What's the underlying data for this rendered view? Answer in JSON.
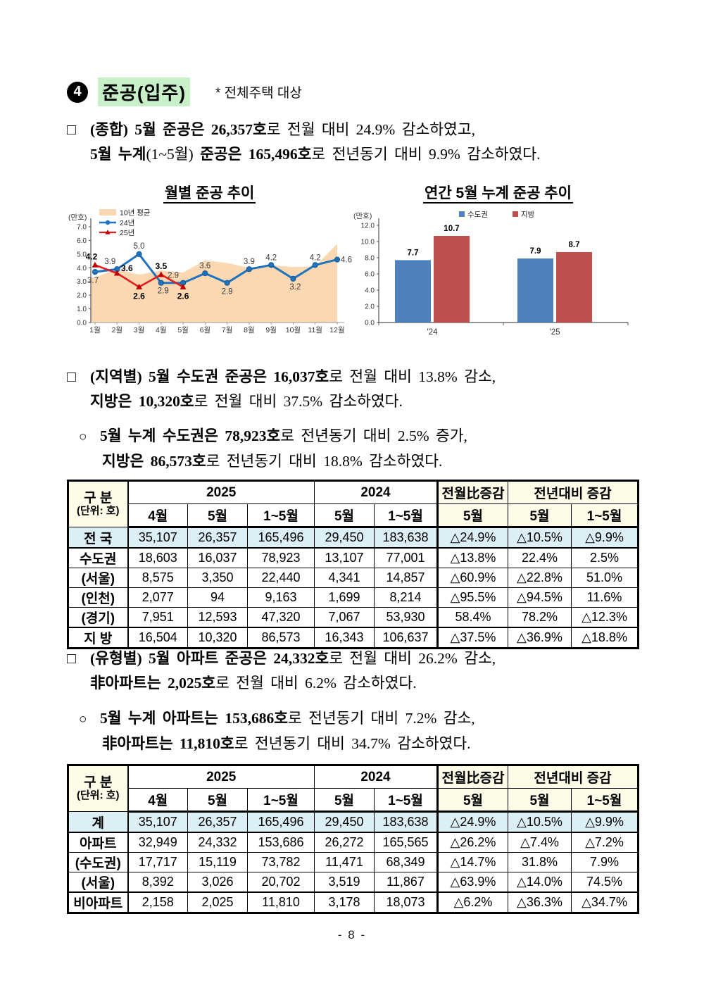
{
  "header": {
    "section_number": "4",
    "title": "준공(입주)",
    "note": "* 전체주택 대상"
  },
  "colors": {
    "highlight_green": "#C8F0C8",
    "table_row_blue": "#DCEFF7",
    "table_header_yellow": "#FDFCE8",
    "line_24_blue": "#1E73BE",
    "line_25_red": "#E02020",
    "area_peach": "#FBD8B2",
    "bar_blue": "#4F81BD",
    "bar_red": "#C0504D"
  },
  "paragraphs": [
    {
      "marker": "□",
      "style": "main",
      "lines": [
        [
          {
            "t": "(종합) 5월 준공은 ",
            "b": 1
          },
          {
            "t": "26,357호",
            "b": 1
          },
          {
            "t": "로 전월 대비 24.9% 감소하였고,",
            "b": 0
          }
        ],
        [
          {
            "t": "5월 누계",
            "b": 1
          },
          {
            "t": "(1~5월)",
            "b": 0
          },
          {
            "t": " 준공은 ",
            "b": 1
          },
          {
            "t": "165,496호",
            "b": 1
          },
          {
            "t": "로 전년동기 대비 9.9% 감소하였다.",
            "b": 0
          }
        ]
      ]
    },
    {
      "marker": "□",
      "style": "main",
      "lines": [
        [
          {
            "t": "(지역별) 5월 수도권 준공은 ",
            "b": 1
          },
          {
            "t": "16,037호",
            "b": 1
          },
          {
            "t": "로 전월 대비 13.8% 감소,",
            "b": 0
          }
        ],
        [
          {
            "t": "지방은 10,320호",
            "b": 1
          },
          {
            "t": "로 전월 대비 37.5% 감소하였다.",
            "b": 0
          }
        ]
      ]
    },
    {
      "marker": "○",
      "style": "sub",
      "lines": [
        [
          {
            "t": "5월 누계 수도권은 ",
            "b": 1
          },
          {
            "t": "78,923호",
            "b": 1
          },
          {
            "t": "로 전년동기 대비 2.5% 증가,",
            "b": 0
          }
        ],
        [
          {
            "t": "지방은 86,573호",
            "b": 1
          },
          {
            "t": "로 전년동기 대비 18.8% 감소하였다.",
            "b": 0
          }
        ]
      ]
    },
    {
      "marker": "□",
      "style": "main",
      "lines": [
        [
          {
            "t": "(유형별) 5월 아파트 준공은 ",
            "b": 1
          },
          {
            "t": "24,332호",
            "b": 1
          },
          {
            "t": "로 전월 대비 26.2% 감소,",
            "b": 0
          }
        ],
        [
          {
            "t": "非아파트는 2,025호",
            "b": 1
          },
          {
            "t": "로 전월 대비 6.2% 감소하였다.",
            "b": 0
          }
        ]
      ]
    },
    {
      "marker": "○",
      "style": "sub",
      "lines": [
        [
          {
            "t": "5월 누계 아파트는 ",
            "b": 1
          },
          {
            "t": "153,686호",
            "b": 1
          },
          {
            "t": "로 전년동기 대비 7.2% 감소,",
            "b": 0
          }
        ],
        [
          {
            "t": "非아파트는 11,810호",
            "b": 1
          },
          {
            "t": "로 전년동기 대비 34.7% 감소하였다.",
            "b": 0
          }
        ]
      ]
    }
  ],
  "chart_data": [
    {
      "type": "line",
      "title": "월별 준공 추이",
      "unit_label": "(만호)",
      "categories": [
        "1월",
        "2월",
        "3월",
        "4월",
        "5월",
        "6월",
        "7월",
        "8월",
        "9월",
        "10월",
        "11월",
        "12월"
      ],
      "ylim": [
        0,
        7
      ],
      "ytick_step": 1.0,
      "grid": false,
      "legend_position": "top-left",
      "series": [
        {
          "name": "10년 평균",
          "type": "area",
          "color": "#FBD8B2",
          "values": [
            3.3,
            3.9,
            3.5,
            3.8,
            3.65,
            4.55,
            4.35,
            4.0,
            4.2,
            4.05,
            4.1,
            5.75
          ]
        },
        {
          "name": "24년",
          "type": "line",
          "color": "#1E73BE",
          "marker": "circle",
          "values": [
            3.7,
            3.9,
            5.0,
            2.9,
            2.9,
            3.6,
            2.9,
            3.9,
            4.2,
            3.2,
            4.2,
            4.6
          ]
        },
        {
          "name": "25년",
          "type": "line",
          "color": "#E02020",
          "marker": "triangle",
          "bold_labels": true,
          "values": [
            4.2,
            3.6,
            2.6,
            3.5,
            2.6
          ]
        }
      ]
    },
    {
      "type": "bar",
      "title": "연간 5월 누계 준공 추이",
      "unit_label": "(만호)",
      "categories": [
        "'24",
        "'25"
      ],
      "ylim": [
        0,
        12
      ],
      "ytick_step": 2.0,
      "grid": false,
      "legend_position": "top-center",
      "series": [
        {
          "name": "수도권",
          "color": "#4F81BD",
          "values": [
            7.7,
            7.9
          ]
        },
        {
          "name": "지방",
          "color": "#C0504D",
          "values": [
            10.7,
            8.7
          ]
        }
      ]
    }
  ],
  "tables": [
    {
      "header": {
        "col_group": "구 분",
        "unit": "(단위: 호)",
        "group_2025": "2025",
        "group_2024": "2024",
        "group_mom": "전월比증감",
        "group_yoy": "전년대비 증감",
        "sub_2025": [
          "4월",
          "5월",
          "1~5월"
        ],
        "sub_2024": [
          "5월",
          "1~5월"
        ],
        "sub_mom": [
          "5월"
        ],
        "sub_yoy": [
          "5월",
          "1~5월"
        ]
      },
      "rows": [
        {
          "label": "전 국",
          "highlight": true,
          "cells": [
            "35,107",
            "26,357",
            "165,496",
            "29,450",
            "183,638",
            "△24.9%",
            "△10.5%",
            "△9.9%"
          ]
        },
        {
          "label": "수도권",
          "highlight": false,
          "cells": [
            "18,603",
            "16,037",
            "78,923",
            "13,107",
            "77,001",
            "△13.8%",
            "22.4%",
            "2.5%"
          ]
        },
        {
          "label": "(서울)",
          "highlight": false,
          "cells": [
            "8,575",
            "3,350",
            "22,440",
            "4,341",
            "14,857",
            "△60.9%",
            "△22.8%",
            "51.0%"
          ]
        },
        {
          "label": "(인천)",
          "highlight": false,
          "cells": [
            "2,077",
            "94",
            "9,163",
            "1,699",
            "8,214",
            "△95.5%",
            "△94.5%",
            "11.6%"
          ]
        },
        {
          "label": "(경기)",
          "highlight": false,
          "cells": [
            "7,951",
            "12,593",
            "47,320",
            "7,067",
            "53,930",
            "58.4%",
            "78.2%",
            "△12.3%"
          ]
        },
        {
          "label": "지 방",
          "highlight": false,
          "cells": [
            "16,504",
            "10,320",
            "86,573",
            "16,343",
            "106,637",
            "△37.5%",
            "△36.9%",
            "△18.8%"
          ]
        }
      ]
    },
    {
      "header": {
        "col_group": "구 분",
        "unit": "(단위: 호)",
        "group_2025": "2025",
        "group_2024": "2024",
        "group_mom": "전월比증감",
        "group_yoy": "전년대비 증감",
        "sub_2025": [
          "4월",
          "5월",
          "1~5월"
        ],
        "sub_2024": [
          "5월",
          "1~5월"
        ],
        "sub_mom": [
          "5월"
        ],
        "sub_yoy": [
          "5월",
          "1~5월"
        ]
      },
      "rows": [
        {
          "label": "계",
          "highlight": true,
          "cells": [
            "35,107",
            "26,357",
            "165,496",
            "29,450",
            "183,638",
            "△24.9%",
            "△10.5%",
            "△9.9%"
          ]
        },
        {
          "label": "아파트",
          "highlight": false,
          "cells": [
            "32,949",
            "24,332",
            "153,686",
            "26,272",
            "165,565",
            "△26.2%",
            "△7.4%",
            "△7.2%"
          ]
        },
        {
          "label": "(수도권)",
          "highlight": false,
          "cells": [
            "17,717",
            "15,119",
            "73,782",
            "11,471",
            "68,349",
            "△14.7%",
            "31.8%",
            "7.9%"
          ]
        },
        {
          "label": "(서울)",
          "highlight": false,
          "cells": [
            "8,392",
            "3,026",
            "20,702",
            "3,519",
            "11,867",
            "△63.9%",
            "△14.0%",
            "74.5%"
          ]
        },
        {
          "label": "비아파트",
          "highlight": false,
          "cells": [
            "2,158",
            "2,025",
            "11,810",
            "3,178",
            "18,073",
            "△6.2%",
            "△36.3%",
            "△34.7%"
          ]
        }
      ]
    }
  ],
  "page": {
    "number_label": "- 8 -"
  }
}
